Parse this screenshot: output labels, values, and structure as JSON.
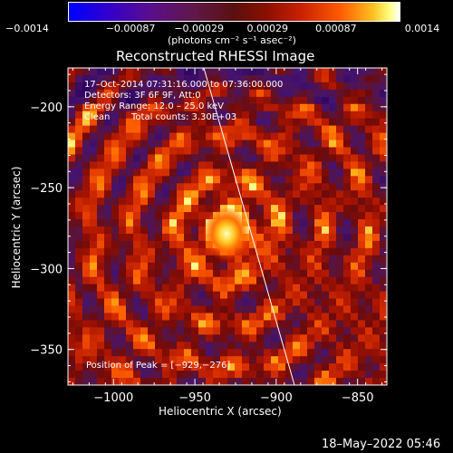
{
  "chart_data": {
    "type": "heatmap",
    "title": "Reconstructed RHESSI Image",
    "xlabel": "Heliocentric X (arcsec)",
    "ylabel": "Heliocentric Y (arcsec)",
    "xlim": [
      -1028,
      -832
    ],
    "ylim": [
      -372,
      -176
    ],
    "xticks": [
      -1000,
      -950,
      -900,
      -850
    ],
    "yticks": [
      -200,
      -250,
      -300,
      -350
    ],
    "xtick_labels": [
      "−1000",
      "−950",
      "−900",
      "−850"
    ],
    "ytick_labels": [
      "−200",
      "−250",
      "−300",
      "−350"
    ],
    "colorbar": {
      "range": [
        -0.0014,
        0.0014
      ],
      "ticks": [
        -0.0014,
        -0.00087,
        -0.00029,
        0.00029,
        0.00087,
        0.0014
      ],
      "tick_labels": [
        "−0.0014",
        "−0.00087",
        "−0.00029",
        "0.00029",
        "0.00087",
        "0.0014"
      ],
      "units_label": "(photons cm⁻² s⁻¹ asec⁻²)"
    },
    "peak": {
      "x": -929,
      "y": -276
    },
    "annotations": {
      "time_range": "17–Oct–2014 07:31:16.000 to 07:36:00.000",
      "detectors": "Detectors: 3F 6F 9F, Att:0",
      "energy_range": "Energy Range: 12.0 – 25.0 keV",
      "method": "Clean",
      "total_counts": "Total counts: 3.30E+03",
      "peak_position": "Position of Peak = [−929,−276]"
    },
    "grid": false
  },
  "footer": {
    "timestamp": "18–May–2022 05:46"
  }
}
